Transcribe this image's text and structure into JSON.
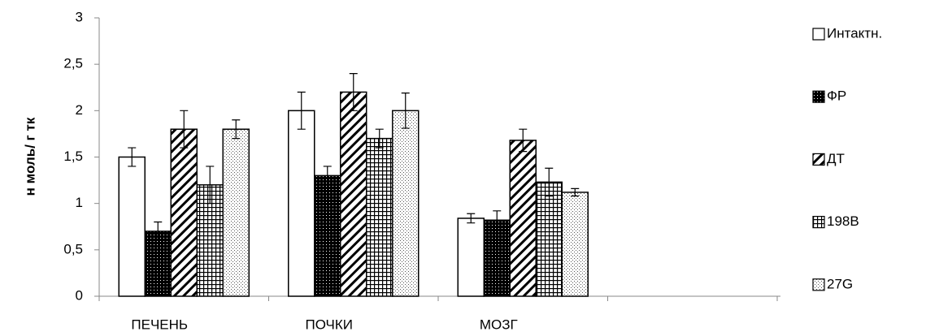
{
  "chart_data": {
    "type": "bar",
    "y_label": "н моль/ г тк",
    "categories": [
      "ПЕЧЕНЬ",
      "ПОЧКИ",
      "МОЗГ",
      null
    ],
    "series": [
      {
        "name": "Интактн.",
        "color": "#ffffff",
        "values": [
          1.5,
          2.0,
          0.84,
          null
        ],
        "errors": [
          0.1,
          0.2,
          0.05,
          null
        ]
      },
      {
        "name": "ФР",
        "color": "#000000",
        "values": [
          0.7,
          1.3,
          0.82,
          null
        ],
        "errors": [
          0.1,
          0.1,
          0.1,
          null
        ]
      },
      {
        "name": "ДТ",
        "color": "#000000",
        "values": [
          1.8,
          2.2,
          1.68,
          null
        ],
        "errors": [
          0.2,
          0.2,
          0.12,
          null
        ]
      },
      {
        "name": "198B",
        "color": "#000000",
        "values": [
          1.2,
          1.7,
          1.23,
          null
        ],
        "errors": [
          0.2,
          0.1,
          0.15,
          null
        ]
      },
      {
        "name": "27G",
        "color": "#000000",
        "values": [
          1.8,
          2.0,
          1.12,
          null
        ],
        "errors": [
          0.1,
          0.19,
          0.04,
          null
        ]
      }
    ],
    "ylim": [
      0,
      3
    ],
    "yticks": [
      0,
      {
        "value": 0.5,
        "label": "0,5"
      },
      1,
      {
        "value": 1.5,
        "label": "1,5"
      },
      2,
      {
        "value": 2.5,
        "label": "2,5"
      },
      3
    ],
    "legend": "right"
  }
}
